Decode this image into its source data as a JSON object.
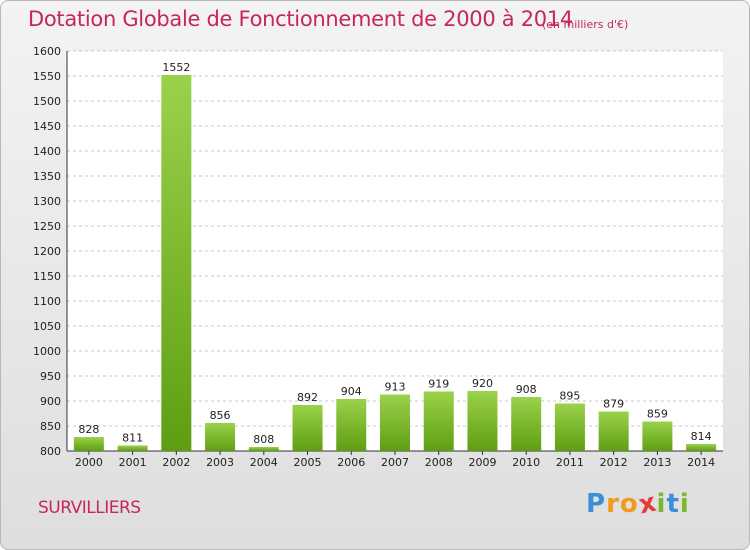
{
  "header": {
    "title": "Dotation Globale de Fonctionnement de 2000 à 2014",
    "unit": "(en milliers d'€)"
  },
  "footer": {
    "commune": "SURVILLIERS",
    "logo_letters": [
      "P",
      "r",
      "o",
      "x",
      "i",
      "t",
      "i"
    ]
  },
  "colors": {
    "title": "#c7265a",
    "bar_light": "#9bd24b",
    "bar_dark": "#5e9e12",
    "grid": "#c8c8c8",
    "logo": [
      "#3b8ed8",
      "#f29a1a",
      "#f29a1a",
      "#e23d3d",
      "#7ab82d",
      "#3b8ed8",
      "#7ab82d"
    ]
  },
  "chart_data": {
    "type": "bar",
    "title": "Dotation Globale de Fonctionnement de 2000 à 2014",
    "subtitle": "(en milliers d'€)",
    "xlabel": "",
    "ylabel": "",
    "categories": [
      "2000",
      "2001",
      "2002",
      "2003",
      "2004",
      "2005",
      "2006",
      "2007",
      "2008",
      "2009",
      "2010",
      "2011",
      "2012",
      "2013",
      "2014"
    ],
    "values": [
      828,
      811,
      1552,
      856,
      808,
      892,
      904,
      913,
      919,
      920,
      908,
      895,
      879,
      859,
      814
    ],
    "ylim": [
      800,
      1600
    ],
    "yticks": [
      800,
      850,
      900,
      950,
      1000,
      1050,
      1100,
      1150,
      1200,
      1250,
      1300,
      1350,
      1400,
      1450,
      1500,
      1550,
      1600
    ],
    "grid": "horizontal dashed",
    "legend": "none"
  }
}
